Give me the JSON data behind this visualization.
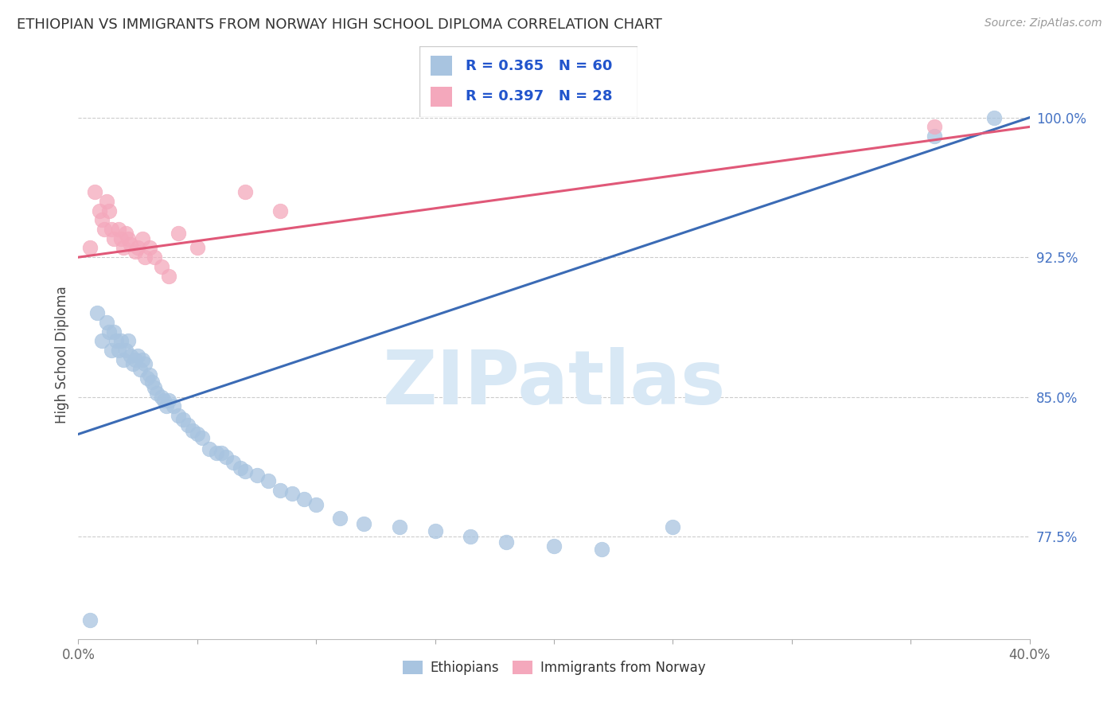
{
  "title": "ETHIOPIAN VS IMMIGRANTS FROM NORWAY HIGH SCHOOL DIPLOMA CORRELATION CHART",
  "source": "Source: ZipAtlas.com",
  "ylabel": "High School Diploma",
  "xlim": [
    0.0,
    0.4
  ],
  "ylim": [
    0.72,
    1.025
  ],
  "xticks": [
    0.0,
    0.05,
    0.1,
    0.15,
    0.2,
    0.25,
    0.3,
    0.35,
    0.4
  ],
  "xticklabels": [
    "0.0%",
    "",
    "",
    "",
    "",
    "",
    "",
    "",
    "40.0%"
  ],
  "yticks_right": [
    0.775,
    0.85,
    0.925,
    1.0
  ],
  "ytick_right_labels": [
    "77.5%",
    "85.0%",
    "92.5%",
    "100.0%"
  ],
  "r_ethiopian": 0.365,
  "n_ethiopian": 60,
  "r_norway": 0.397,
  "n_norway": 28,
  "blue_color": "#A8C4E0",
  "pink_color": "#F4A8BC",
  "blue_line_color": "#3B6BB5",
  "pink_line_color": "#E05878",
  "legend_label_ethiopian": "Ethiopians",
  "legend_label_norway": "Immigrants from Norway",
  "ethiopian_x": [
    0.005,
    0.008,
    0.01,
    0.012,
    0.013,
    0.014,
    0.015,
    0.016,
    0.017,
    0.018,
    0.019,
    0.02,
    0.021,
    0.022,
    0.023,
    0.024,
    0.025,
    0.026,
    0.027,
    0.028,
    0.029,
    0.03,
    0.031,
    0.032,
    0.033,
    0.035,
    0.036,
    0.037,
    0.038,
    0.04,
    0.042,
    0.044,
    0.046,
    0.048,
    0.05,
    0.052,
    0.055,
    0.058,
    0.06,
    0.062,
    0.065,
    0.068,
    0.07,
    0.075,
    0.08,
    0.085,
    0.09,
    0.095,
    0.1,
    0.11,
    0.12,
    0.135,
    0.15,
    0.165,
    0.18,
    0.2,
    0.22,
    0.25,
    0.36,
    0.385
  ],
  "ethiopian_y": [
    0.73,
    0.895,
    0.88,
    0.89,
    0.885,
    0.875,
    0.885,
    0.88,
    0.875,
    0.88,
    0.87,
    0.875,
    0.88,
    0.872,
    0.868,
    0.87,
    0.872,
    0.865,
    0.87,
    0.868,
    0.86,
    0.862,
    0.858,
    0.855,
    0.852,
    0.85,
    0.848,
    0.845,
    0.848,
    0.845,
    0.84,
    0.838,
    0.835,
    0.832,
    0.83,
    0.828,
    0.822,
    0.82,
    0.82,
    0.818,
    0.815,
    0.812,
    0.81,
    0.808,
    0.805,
    0.8,
    0.798,
    0.795,
    0.792,
    0.785,
    0.782,
    0.78,
    0.778,
    0.775,
    0.772,
    0.77,
    0.768,
    0.78,
    0.99,
    1.0
  ],
  "norway_x": [
    0.005,
    0.007,
    0.009,
    0.01,
    0.011,
    0.012,
    0.013,
    0.014,
    0.015,
    0.017,
    0.018,
    0.019,
    0.02,
    0.021,
    0.022,
    0.024,
    0.025,
    0.027,
    0.028,
    0.03,
    0.032,
    0.035,
    0.038,
    0.042,
    0.05,
    0.07,
    0.085,
    0.36
  ],
  "norway_y": [
    0.93,
    0.96,
    0.95,
    0.945,
    0.94,
    0.955,
    0.95,
    0.94,
    0.935,
    0.94,
    0.935,
    0.93,
    0.938,
    0.935,
    0.932,
    0.928,
    0.93,
    0.935,
    0.925,
    0.93,
    0.925,
    0.92,
    0.915,
    0.938,
    0.93,
    0.96,
    0.95,
    0.995
  ],
  "watermark_text": "ZIPatlas",
  "watermark_color": "#D8E8F5",
  "blue_trend_y0": 0.83,
  "blue_trend_y1": 1.0,
  "pink_trend_y0": 0.925,
  "pink_trend_y1": 0.995
}
